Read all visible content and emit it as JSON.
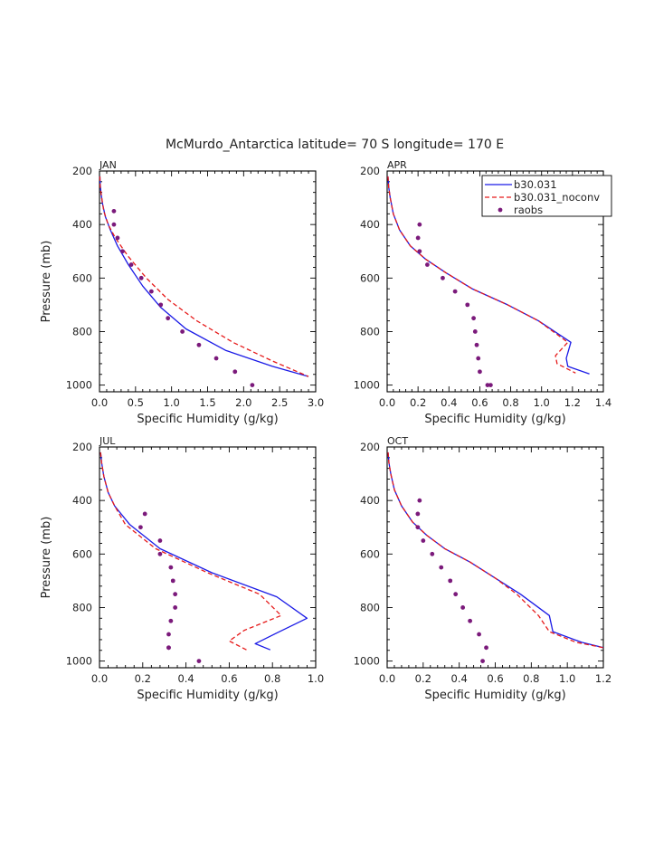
{
  "title": "McMurdo_Antarctica  latitude= 70 S longitude= 170 E",
  "legend": {
    "entries": [
      {
        "name": "b30.031",
        "style": "solid",
        "color": "#1a1ae6"
      },
      {
        "name": "b30.031_noconv",
        "style": "dashed",
        "color": "#e61a1a"
      },
      {
        "name": "raobs",
        "style": "dots",
        "color": "#7b1a7b"
      }
    ]
  },
  "colors": {
    "model": "#1a1ae6",
    "noconv": "#e61a1a",
    "raobs": "#7b1a7b",
    "axis": "#000000"
  },
  "chart_data": [
    {
      "type": "line",
      "panel": "JAN",
      "xlabel": "Specific Humidity (g/kg)",
      "ylabel": "Pressure (mb)",
      "xlim": [
        0,
        3.0
      ],
      "ylim": [
        200,
        1025
      ],
      "xticks": [
        "0.0",
        "0.5",
        "1.0",
        "1.5",
        "2.0",
        "2.5",
        "3.0"
      ],
      "yticks": [
        "200",
        "400",
        "600",
        "800",
        "1000"
      ],
      "series": [
        {
          "name": "b30.031",
          "style": "solid",
          "x": [
            0.005,
            0.01,
            0.02,
            0.04,
            0.08,
            0.15,
            0.25,
            0.4,
            0.6,
            0.85,
            1.2,
            1.75,
            2.4,
            2.9
          ],
          "y": [
            220,
            250,
            280,
            320,
            370,
            420,
            480,
            550,
            630,
            710,
            790,
            870,
            930,
            968
          ]
        },
        {
          "name": "b30.031_noconv",
          "style": "dashed",
          "x": [
            0.005,
            0.01,
            0.03,
            0.06,
            0.12,
            0.22,
            0.4,
            0.65,
            0.95,
            1.35,
            1.85,
            2.4,
            2.9
          ],
          "y": [
            220,
            260,
            300,
            350,
            400,
            450,
            520,
            600,
            680,
            760,
            840,
            910,
            968
          ]
        },
        {
          "name": "raobs",
          "style": "dots",
          "x": [
            0.2,
            0.2,
            0.25,
            0.32,
            0.44,
            0.58,
            0.72,
            0.85,
            0.95,
            1.15,
            1.38,
            1.62,
            1.88,
            2.12
          ],
          "y": [
            350,
            400,
            450,
            500,
            550,
            600,
            650,
            700,
            750,
            800,
            850,
            900,
            950,
            1000
          ]
        }
      ]
    },
    {
      "type": "line",
      "panel": "APR",
      "xlabel": "Specific Humidity (g/kg)",
      "ylabel": "",
      "xlim": [
        0,
        1.4
      ],
      "ylim": [
        200,
        1025
      ],
      "xticks": [
        "0.0",
        "0.2",
        "0.4",
        "0.6",
        "0.8",
        "1.0",
        "1.2",
        "1.4"
      ],
      "yticks": [
        "200",
        "400",
        "600",
        "800",
        "1000"
      ],
      "series": [
        {
          "name": "b30.031",
          "style": "solid",
          "x": [
            0.005,
            0.01,
            0.02,
            0.04,
            0.08,
            0.15,
            0.25,
            0.38,
            0.55,
            0.78,
            0.98,
            1.19,
            1.16,
            1.17,
            1.31
          ],
          "y": [
            220,
            260,
            300,
            360,
            420,
            480,
            530,
            580,
            640,
            700,
            760,
            840,
            900,
            930,
            958
          ]
        },
        {
          "name": "b30.031_noconv",
          "style": "dashed",
          "x": [
            0.005,
            0.01,
            0.02,
            0.04,
            0.08,
            0.15,
            0.25,
            0.38,
            0.55,
            0.78,
            0.98,
            1.17,
            1.09,
            1.1,
            1.22
          ],
          "y": [
            220,
            260,
            300,
            360,
            420,
            480,
            530,
            580,
            640,
            700,
            760,
            840,
            890,
            920,
            955
          ]
        },
        {
          "name": "raobs",
          "style": "dots",
          "x": [
            0.21,
            0.2,
            0.21,
            0.26,
            0.36,
            0.44,
            0.52,
            0.56,
            0.57,
            0.58,
            0.59,
            0.6,
            0.65,
            0.67
          ],
          "y": [
            400,
            450,
            500,
            550,
            600,
            650,
            700,
            750,
            800,
            850,
            900,
            950,
            1000,
            1000
          ]
        }
      ]
    },
    {
      "type": "line",
      "panel": "JUL",
      "xlabel": "Specific Humidity (g/kg)",
      "ylabel": "Pressure (mb)",
      "xlim": [
        0,
        1.0
      ],
      "ylim": [
        200,
        1025
      ],
      "xticks": [
        "0.0",
        "0.2",
        "0.4",
        "0.6",
        "0.8",
        "1.0"
      ],
      "yticks": [
        "200",
        "400",
        "600",
        "800",
        "1000"
      ],
      "series": [
        {
          "name": "b30.031",
          "style": "solid",
          "x": [
            0.005,
            0.01,
            0.02,
            0.04,
            0.07,
            0.14,
            0.28,
            0.52,
            0.82,
            0.96,
            0.82,
            0.72,
            0.79
          ],
          "y": [
            220,
            260,
            310,
            370,
            420,
            490,
            580,
            670,
            760,
            840,
            895,
            935,
            958
          ]
        },
        {
          "name": "b30.031_noconv",
          "style": "dashed",
          "x": [
            0.005,
            0.01,
            0.02,
            0.04,
            0.07,
            0.12,
            0.26,
            0.5,
            0.74,
            0.84,
            0.67,
            0.6,
            0.68
          ],
          "y": [
            220,
            260,
            310,
            370,
            420,
            490,
            580,
            670,
            750,
            830,
            885,
            925,
            958
          ]
        },
        {
          "name": "raobs",
          "style": "dots",
          "x": [
            0.21,
            0.19,
            0.28,
            0.28,
            0.33,
            0.34,
            0.35,
            0.35,
            0.33,
            0.32,
            0.32,
            0.32,
            0.46
          ],
          "y": [
            450,
            500,
            550,
            600,
            650,
            700,
            750,
            800,
            850,
            900,
            950,
            950,
            1000
          ]
        }
      ]
    },
    {
      "type": "line",
      "panel": "OCT",
      "xlabel": "Specific Humidity (g/kg)",
      "ylabel": "",
      "xlim": [
        0,
        1.2
      ],
      "ylim": [
        200,
        1025
      ],
      "xticks": [
        "0.0",
        "0.2",
        "0.4",
        "0.6",
        "0.8",
        "1.0",
        "1.2"
      ],
      "yticks": [
        "200",
        "400",
        "600",
        "800",
        "1000"
      ],
      "series": [
        {
          "name": "b30.031",
          "style": "solid",
          "x": [
            0.005,
            0.01,
            0.02,
            0.04,
            0.08,
            0.14,
            0.22,
            0.32,
            0.46,
            0.6,
            0.74,
            0.9,
            0.92,
            1.08,
            1.2
          ],
          "y": [
            220,
            260,
            300,
            360,
            420,
            480,
            530,
            580,
            630,
            690,
            750,
            830,
            890,
            930,
            950
          ]
        },
        {
          "name": "b30.031_noconv",
          "style": "dashed",
          "x": [
            0.005,
            0.01,
            0.02,
            0.04,
            0.08,
            0.14,
            0.22,
            0.32,
            0.46,
            0.6,
            0.72,
            0.84,
            0.9,
            1.05,
            1.2
          ],
          "y": [
            220,
            260,
            300,
            360,
            420,
            480,
            530,
            580,
            630,
            690,
            750,
            830,
            890,
            930,
            950
          ]
        },
        {
          "name": "raobs",
          "style": "dots",
          "x": [
            0.18,
            0.17,
            0.17,
            0.2,
            0.25,
            0.3,
            0.35,
            0.38,
            0.42,
            0.46,
            0.51,
            0.55,
            0.53
          ],
          "y": [
            400,
            450,
            500,
            550,
            600,
            650,
            700,
            750,
            800,
            850,
            900,
            950,
            1000
          ]
        }
      ]
    }
  ]
}
